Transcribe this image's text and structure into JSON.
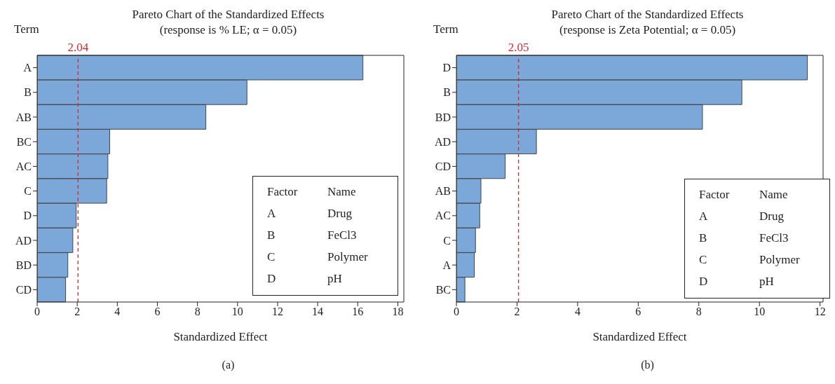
{
  "chart_data": [
    {
      "type": "bar",
      "orientation": "horizontal",
      "title": "Pareto Chart of the Standardized Effects",
      "subtitle": "(response is % LE; α = 0.05)",
      "xlabel": "Standardized Effect",
      "ylabel": "Term",
      "categories": [
        "A",
        "B",
        "AB",
        "BC",
        "AC",
        "C",
        "D",
        "AD",
        "BD",
        "CD"
      ],
      "values": [
        16.26,
        10.47,
        8.42,
        3.62,
        3.53,
        3.47,
        1.95,
        1.78,
        1.53,
        1.42
      ],
      "color": "#7ba7d9",
      "xlim": [
        0,
        18.3
      ],
      "xticks": [
        0,
        2,
        4,
        6,
        8,
        10,
        12,
        14,
        16,
        18
      ],
      "ref_lines": [
        {
          "axis": "x",
          "value": 2.04,
          "label": "2.04",
          "color": "#d9262c",
          "line_style": "dashed"
        }
      ],
      "grid": false,
      "legend": false,
      "annotations": [
        "Factor",
        "Name",
        "A",
        "Drug",
        "B",
        "FeCl3",
        "C",
        "Polymer",
        "D",
        "pH",
        "(a)"
      ]
    },
    {
      "type": "bar",
      "orientation": "horizontal",
      "title": "Pareto Chart of the Standardized Effects",
      "subtitle": "(response is Zeta Potential; α = 0.05)",
      "xlabel": "Standardized Effect",
      "ylabel": "Term",
      "categories": [
        "D",
        "B",
        "BD",
        "AD",
        "CD",
        "AB",
        "AC",
        "C",
        "A",
        "BC"
      ],
      "values": [
        11.58,
        9.42,
        8.12,
        2.64,
        1.61,
        0.81,
        0.77,
        0.63,
        0.59,
        0.28
      ],
      "color": "#7ba7d9",
      "xlim": [
        0,
        12.1
      ],
      "xticks": [
        0,
        2,
        4,
        6,
        8,
        10,
        12
      ],
      "ref_lines": [
        {
          "axis": "x",
          "value": 2.05,
          "label": "2.05",
          "color": "#d9262c",
          "line_style": "dashed"
        }
      ],
      "grid": false,
      "legend": false,
      "annotations": [
        "Factor",
        "Name",
        "A",
        "Drug",
        "B",
        "FeCl3",
        "C",
        "Polymer",
        "D",
        "pH",
        "(b)"
      ]
    }
  ]
}
